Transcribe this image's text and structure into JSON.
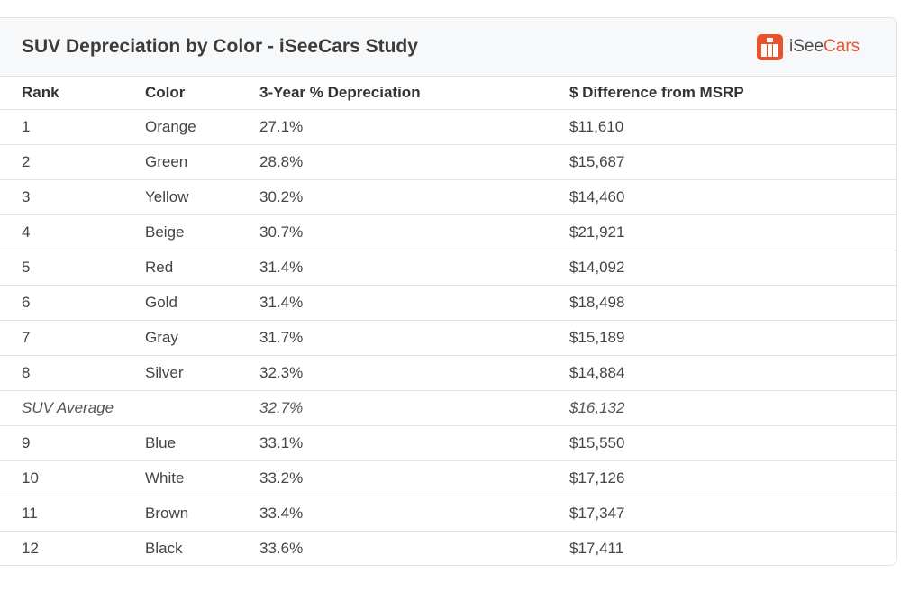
{
  "header": {
    "title": "SUV Depreciation by Color - iSeeCars Study",
    "brand_prefix": "iSee",
    "brand_suffix": "Cars",
    "brand_icon": "iseecars-logo-icon"
  },
  "colors": {
    "brand": "#e8532b",
    "header_bg": "#f7f8fa",
    "border": "#e2e2e2"
  },
  "table": {
    "columns": [
      "Rank",
      "Color",
      "3-Year % Depreciation",
      "$ Difference from MSRP"
    ],
    "rows": [
      {
        "rank": "1",
        "color": "Orange",
        "depreciation": "27.1%",
        "difference": "$11,610"
      },
      {
        "rank": "2",
        "color": "Green",
        "depreciation": "28.8%",
        "difference": "$15,687"
      },
      {
        "rank": "3",
        "color": "Yellow",
        "depreciation": "30.2%",
        "difference": "$14,460"
      },
      {
        "rank": "4",
        "color": "Beige",
        "depreciation": "30.7%",
        "difference": "$21,921"
      },
      {
        "rank": "5",
        "color": "Red",
        "depreciation": "31.4%",
        "difference": "$14,092"
      },
      {
        "rank": "6",
        "color": "Gold",
        "depreciation": "31.4%",
        "difference": "$18,498"
      },
      {
        "rank": "7",
        "color": "Gray",
        "depreciation": "31.7%",
        "difference": "$15,189"
      },
      {
        "rank": "8",
        "color": "Silver",
        "depreciation": "32.3%",
        "difference": "$14,884"
      },
      {
        "rank": "SUV Average",
        "color": "",
        "depreciation": "32.7%",
        "difference": "$16,132"
      },
      {
        "rank": "9",
        "color": "Blue",
        "depreciation": "33.1%",
        "difference": "$15,550"
      },
      {
        "rank": "10",
        "color": "White",
        "depreciation": "33.2%",
        "difference": "$17,126"
      },
      {
        "rank": "11",
        "color": "Brown",
        "depreciation": "33.4%",
        "difference": "$17,347"
      },
      {
        "rank": "12",
        "color": "Black",
        "depreciation": "33.6%",
        "difference": "$17,411"
      }
    ]
  }
}
